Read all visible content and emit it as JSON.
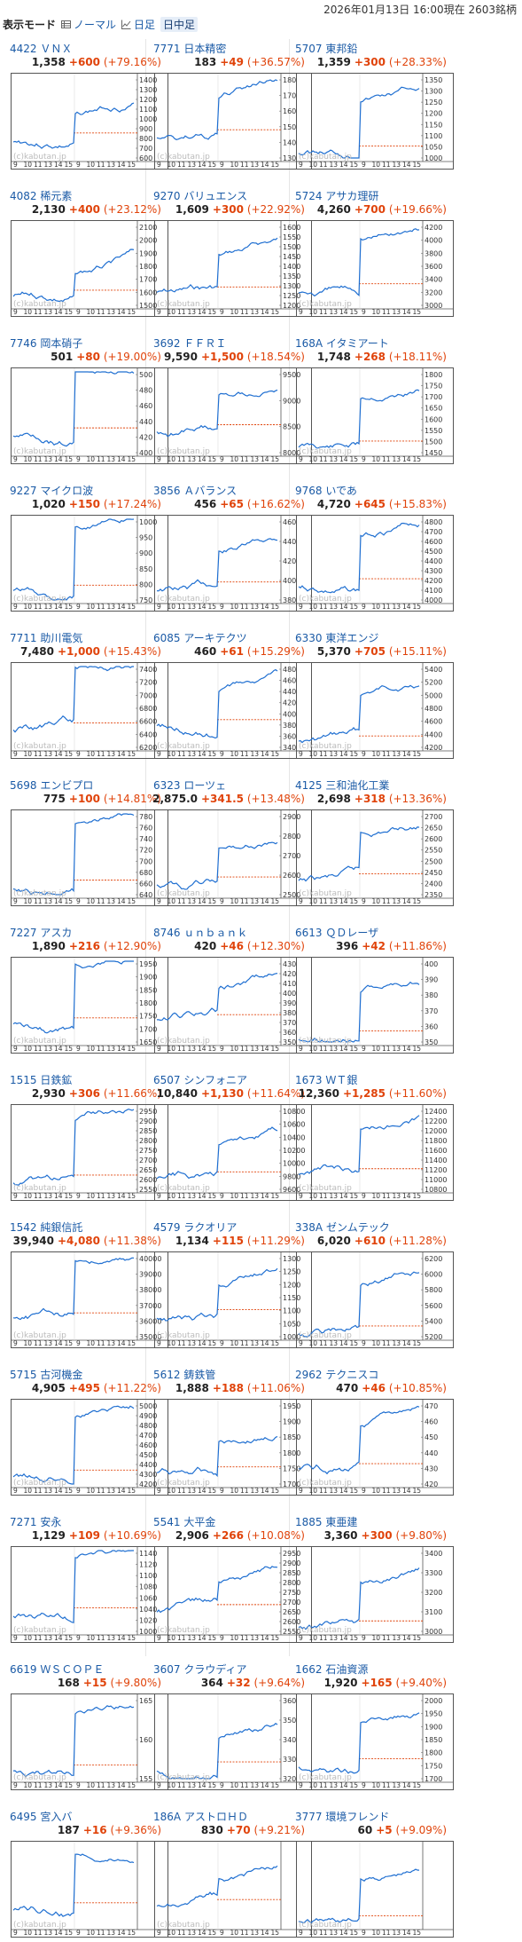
{
  "header": {
    "date_text": "2026年01月13日  16:00現在  2603銘柄",
    "mode_label": "表示モード",
    "options": [
      {
        "label": "ノーマル",
        "icon": "table-icon"
      },
      {
        "label": "日足",
        "icon": "line-chart-icon"
      },
      {
        "label": "日中足",
        "icon": ""
      }
    ]
  },
  "colors": {
    "link": "#1a5aa6",
    "up": "#e0430a",
    "line": "#1f6fd1",
    "base": "#e0430a"
  },
  "watermark": "(c)kabutan.jp",
  "x_ticks": [
    "9",
    "10",
    "11",
    "13",
    "14",
    "15",
    "9",
    "10",
    "11",
    "13",
    "14",
    "15"
  ],
  "stocks": [
    {
      "code": "4422",
      "name": "ＶＮＸ",
      "price": "1,358",
      "change": "+600",
      "pct": "(+79.16%)",
      "yticks": [
        "1400",
        "1300",
        "1200",
        "1100",
        "1000",
        "900",
        "800",
        "700",
        "600"
      ]
    },
    {
      "code": "7771",
      "name": "日本精密",
      "price": "183",
      "change": "+49",
      "pct": "(+36.57%)",
      "yticks": [
        "180",
        "170",
        "160",
        "150",
        "140",
        "130"
      ]
    },
    {
      "code": "5707",
      "name": "東邦鉛",
      "price": "1,359",
      "change": "+300",
      "pct": "(+28.33%)",
      "yticks": [
        "1350",
        "1300",
        "1250",
        "1200",
        "1150",
        "1100",
        "1050",
        "1000"
      ]
    },
    {
      "code": "4082",
      "name": "稀元素",
      "price": "2,130",
      "change": "+400",
      "pct": "(+23.12%)",
      "yticks": [
        "2100",
        "2000",
        "1900",
        "1800",
        "1700",
        "1600",
        "1500"
      ]
    },
    {
      "code": "9270",
      "name": "バリュエンス",
      "price": "1,609",
      "change": "+300",
      "pct": "(+22.92%)",
      "yticks": [
        "1600",
        "1550",
        "1500",
        "1450",
        "1400",
        "1350",
        "1300",
        "1250",
        "1200"
      ]
    },
    {
      "code": "5724",
      "name": "アサカ理研",
      "price": "4,260",
      "change": "+700",
      "pct": "(+19.66%)",
      "yticks": [
        "4200",
        "4000",
        "3800",
        "3600",
        "3400",
        "3200",
        "3000"
      ]
    },
    {
      "code": "7746",
      "name": "岡本硝子",
      "price": "501",
      "change": "+80",
      "pct": "(+19.00%)",
      "yticks": [
        "500",
        "480",
        "460",
        "440",
        "420",
        "400"
      ]
    },
    {
      "code": "3692",
      "name": "ＦＦＲＩ",
      "price": "9,590",
      "change": "+1,500",
      "pct": "(+18.54%)",
      "yticks": [
        "9500",
        "9000",
        "8500",
        "8000"
      ]
    },
    {
      "code": "168A",
      "name": "イタミアート",
      "price": "1,748",
      "change": "+268",
      "pct": "(+18.11%)",
      "yticks": [
        "1800",
        "1750",
        "1700",
        "1650",
        "1600",
        "1550",
        "1500",
        "1450"
      ]
    },
    {
      "code": "9227",
      "name": "マイクロ波",
      "price": "1,020",
      "change": "+150",
      "pct": "(+17.24%)",
      "yticks": [
        "1000",
        "950",
        "900",
        "850",
        "800",
        "750"
      ]
    },
    {
      "code": "3856",
      "name": "Ａバランス",
      "price": "456",
      "change": "+65",
      "pct": "(+16.62%)",
      "yticks": [
        "460",
        "440",
        "420",
        "400",
        "380"
      ]
    },
    {
      "code": "9768",
      "name": "いであ",
      "price": "4,720",
      "change": "+645",
      "pct": "(+15.83%)",
      "yticks": [
        "4800",
        "4700",
        "4600",
        "4500",
        "4400",
        "4300",
        "4200",
        "4100",
        "4000"
      ]
    },
    {
      "code": "7711",
      "name": "助川電気",
      "price": "7,480",
      "change": "+1,000",
      "pct": "(+15.43%)",
      "yticks": [
        "7400",
        "7200",
        "7000",
        "6800",
        "6600",
        "6400",
        "6200"
      ]
    },
    {
      "code": "6085",
      "name": "アーキテクツ",
      "price": "460",
      "change": "+61",
      "pct": "(+15.29%)",
      "yticks": [
        "480",
        "460",
        "440",
        "420",
        "400",
        "380",
        "360",
        "340"
      ]
    },
    {
      "code": "6330",
      "name": "東洋エンジ",
      "price": "5,370",
      "change": "+705",
      "pct": "(+15.11%)",
      "yticks": [
        "5400",
        "5200",
        "5000",
        "4800",
        "4600",
        "4400",
        "4200"
      ]
    },
    {
      "code": "5698",
      "name": "エンビプロ",
      "price": "775",
      "change": "+100",
      "pct": "(+14.81%)",
      "yticks": [
        "780",
        "760",
        "740",
        "720",
        "700",
        "680",
        "660",
        "640"
      ]
    },
    {
      "code": "6323",
      "name": "ローツェ",
      "price": "2,875.0",
      "change": "+341.5",
      "pct": "(+13.48%)",
      "yticks": [
        "2900",
        "2800",
        "2700",
        "2600",
        "2500"
      ]
    },
    {
      "code": "4125",
      "name": "三和油化工業",
      "price": "2,698",
      "change": "+318",
      "pct": "(+13.36%)",
      "yticks": [
        "2700",
        "2650",
        "2600",
        "2550",
        "2500",
        "2450",
        "2400",
        "2350"
      ]
    },
    {
      "code": "7227",
      "name": "アスカ",
      "price": "1,890",
      "change": "+216",
      "pct": "(+12.90%)",
      "yticks": [
        "1950",
        "1900",
        "1850",
        "1800",
        "1750",
        "1700",
        "1650"
      ]
    },
    {
      "code": "8746",
      "name": "ｕｎｂａｎｋ",
      "price": "420",
      "change": "+46",
      "pct": "(+12.30%)",
      "yticks": [
        "430",
        "420",
        "410",
        "400",
        "390",
        "380",
        "370",
        "360",
        "350"
      ]
    },
    {
      "code": "6613",
      "name": "ＱＤレーザ",
      "price": "396",
      "change": "+42",
      "pct": "(+11.86%)",
      "yticks": [
        "400",
        "390",
        "380",
        "370",
        "360",
        "350"
      ]
    },
    {
      "code": "1515",
      "name": "日鉄鉱",
      "price": "2,930",
      "change": "+306",
      "pct": "(+11.66%)",
      "yticks": [
        "2950",
        "2900",
        "2850",
        "2800",
        "2750",
        "2700",
        "2650",
        "2600",
        "2550"
      ]
    },
    {
      "code": "6507",
      "name": "シンフォニア",
      "price": "10,840",
      "change": "+1,130",
      "pct": "(+11.64%)",
      "yticks": [
        "10800",
        "10600",
        "10400",
        "10200",
        "10000",
        "9800",
        "9600"
      ]
    },
    {
      "code": "1673",
      "name": "ＷＴ銀",
      "price": "12,360",
      "change": "+1,285",
      "pct": "(+11.60%)",
      "yticks": [
        "12400",
        "12200",
        "12000",
        "11800",
        "11600",
        "11400",
        "11200",
        "11000",
        "10800"
      ]
    },
    {
      "code": "1542",
      "name": "純銀信託",
      "price": "39,940",
      "change": "+4,080",
      "pct": "(+11.38%)",
      "yticks": [
        "40000",
        "39000",
        "38000",
        "37000",
        "36000",
        "35000"
      ]
    },
    {
      "code": "4579",
      "name": "ラクオリア",
      "price": "1,134",
      "change": "+115",
      "pct": "(+11.29%)",
      "yticks": [
        "1300",
        "1250",
        "1200",
        "1150",
        "1100",
        "1050",
        "1000"
      ]
    },
    {
      "code": "338A",
      "name": "ゼンムテック",
      "price": "6,020",
      "change": "+610",
      "pct": "(+11.28%)",
      "yticks": [
        "6200",
        "6000",
        "5800",
        "5600",
        "5400",
        "5200"
      ]
    },
    {
      "code": "5715",
      "name": "古河機金",
      "price": "4,905",
      "change": "+495",
      "pct": "(+11.22%)",
      "yticks": [
        "5000",
        "4900",
        "4800",
        "4700",
        "4600",
        "4500",
        "4400",
        "4300",
        "4200"
      ]
    },
    {
      "code": "5612",
      "name": "鋳鉄管",
      "price": "1,888",
      "change": "+188",
      "pct": "(+11.06%)",
      "yticks": [
        "1950",
        "1900",
        "1850",
        "1800",
        "1750",
        "1700"
      ]
    },
    {
      "code": "2962",
      "name": "テクニスコ",
      "price": "470",
      "change": "+46",
      "pct": "(+10.85%)",
      "yticks": [
        "470",
        "460",
        "450",
        "440",
        "430",
        "420"
      ]
    },
    {
      "code": "7271",
      "name": "安永",
      "price": "1,129",
      "change": "+109",
      "pct": "(+10.69%)",
      "yticks": [
        "1140",
        "1120",
        "1100",
        "1080",
        "1060",
        "1040",
        "1020",
        "1000"
      ]
    },
    {
      "code": "5541",
      "name": "大平金",
      "price": "2,906",
      "change": "+266",
      "pct": "(+10.08%)",
      "yticks": [
        "2950",
        "2900",
        "2850",
        "2800",
        "2750",
        "2700",
        "2650",
        "2600",
        "2550"
      ]
    },
    {
      "code": "1885",
      "name": "東亜建",
      "price": "3,360",
      "change": "+300",
      "pct": "(+9.80%)",
      "yticks": [
        "3400",
        "3300",
        "3200",
        "3100",
        "3000"
      ]
    },
    {
      "code": "6619",
      "name": "ＷＳＣＯＰＥ",
      "price": "168",
      "change": "+15",
      "pct": "(+9.80%)",
      "yticks": [
        "165",
        "160",
        "155"
      ]
    },
    {
      "code": "3607",
      "name": "クラウディア",
      "price": "364",
      "change": "+32",
      "pct": "(+9.64%)",
      "yticks": [
        "360",
        "350",
        "340",
        "330",
        "320"
      ]
    },
    {
      "code": "1662",
      "name": "石油資源",
      "price": "1,920",
      "change": "+165",
      "pct": "(+9.40%)",
      "yticks": [
        "2000",
        "1950",
        "1900",
        "1850",
        "1800",
        "1750",
        "1700"
      ]
    },
    {
      "code": "6495",
      "name": "宮入バ",
      "price": "187",
      "change": "+16",
      "pct": "(+9.36%)",
      "yticks": []
    },
    {
      "code": "186A",
      "name": "アストロＨＤ",
      "price": "830",
      "change": "+70",
      "pct": "(+9.21%)",
      "yticks": []
    },
    {
      "code": "3777",
      "name": "環境フレンド",
      "price": "60",
      "change": "+5",
      "pct": "(+9.09%)",
      "yticks": []
    }
  ]
}
